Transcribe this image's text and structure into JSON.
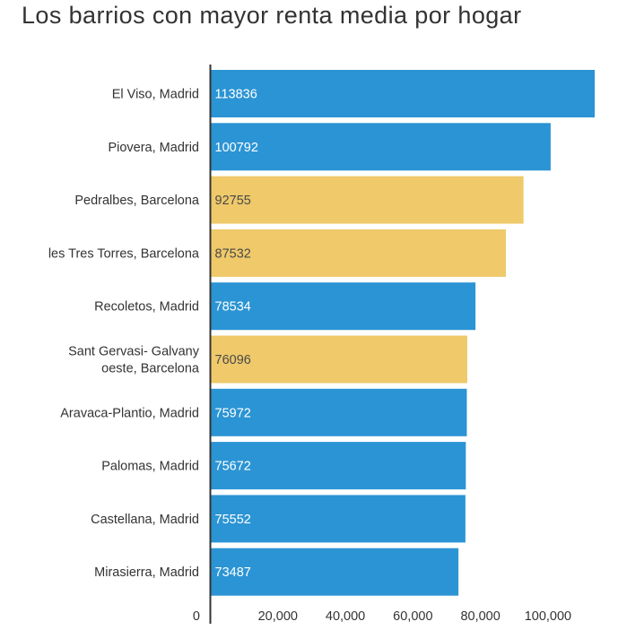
{
  "chart_data": {
    "type": "bar",
    "orientation": "horizontal",
    "title": "Los barrios con mayor renta media por hogar",
    "xlabel": "",
    "ylabel": "",
    "xlim": [
      0,
      122000
    ],
    "grid": false,
    "legend": "none",
    "categories": [
      [
        "El Viso, Madrid"
      ],
      [
        "Piovera, Madrid"
      ],
      [
        "Pedralbes, Barcelona"
      ],
      [
        "les Tres Torres, Barcelona"
      ],
      [
        "Recoletos, Madrid"
      ],
      [
        "Sant Gervasi- Galvany",
        "oeste, Barcelona"
      ],
      [
        "Aravaca-Plantio, Madrid"
      ],
      [
        "Palomas, Madrid"
      ],
      [
        "Castellana, Madrid"
      ],
      [
        "Mirasierra, Madrid"
      ]
    ],
    "values": [
      113836,
      100792,
      92755,
      87532,
      78534,
      76096,
      75972,
      75672,
      75552,
      73487
    ],
    "value_labels": [
      "113836",
      "100792",
      "92755",
      "87532",
      "78534",
      "76096",
      "75972",
      "75672",
      "75552",
      "73487"
    ],
    "bar_colors": [
      "#2b94d4",
      "#2b94d4",
      "#efc96a",
      "#efc96a",
      "#2b94d4",
      "#efc96a",
      "#2b94d4",
      "#2b94d4",
      "#2b94d4",
      "#2b94d4"
    ],
    "label_colors": [
      "#ffffff",
      "#ffffff",
      "#4a4a4a",
      "#4a4a4a",
      "#ffffff",
      "#4a4a4a",
      "#ffffff",
      "#ffffff",
      "#ffffff",
      "#ffffff"
    ],
    "x_ticks": [
      0,
      20000,
      40000,
      60000,
      80000,
      100000
    ],
    "x_tick_labels": [
      "0",
      "20,000",
      "40,000",
      "60,000",
      "80,000",
      "100,000"
    ],
    "axis_color": "#333333"
  }
}
